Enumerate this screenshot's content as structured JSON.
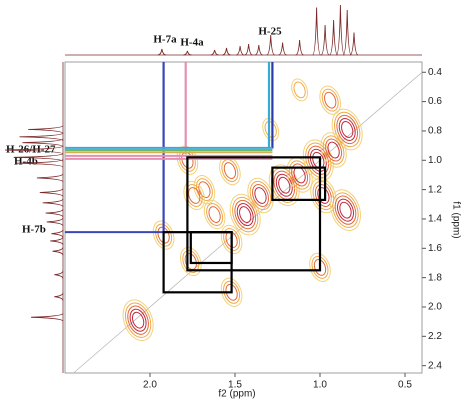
{
  "chart_data": {
    "type": "contour",
    "x_label": "f2 (ppm)",
    "y_label": "f1 (ppm)",
    "xlim": [
      2.5,
      0.4
    ],
    "ylim": [
      0.33,
      2.45
    ],
    "xticks": [
      {
        "value": 2,
        "label": "2.0"
      },
      1.5,
      {
        "value": 1,
        "label": "1.0"
      },
      0.5
    ],
    "yticks": [
      0.4,
      0.6,
      0.8,
      {
        "value": 1,
        "label": "1.0"
      },
      1.2,
      1.4,
      1.6,
      1.8,
      {
        "value": 2,
        "label": "2.0"
      },
      2.2,
      2.4
    ],
    "annotations": [
      "H-7a",
      "H-4a",
      "H-25",
      "H-26/H-27",
      "H-4b",
      "H-7b"
    ],
    "peaks": {
      "x": [
        2.07,
        1.92,
        1.78,
        1.76,
        1.52,
        1.52,
        1.62,
        1.44,
        1.35,
        1.21,
        1.12,
        1.01,
        1.0,
        0.98,
        0.84,
        0.85,
        0.92,
        1.12,
        1.29,
        1.68,
        1.53,
        1.74,
        0.94
      ],
      "y": [
        2.09,
        1.51,
        1.0,
        1.69,
        1.9,
        1.54,
        1.37,
        1.37,
        1.24,
        1.17,
        1.1,
        1.0,
        1.73,
        1.24,
        0.79,
        1.34,
        0.93,
        0.52,
        0.79,
        1.2,
        1.07,
        1.24,
        0.59
      ],
      "intensity": [
        4,
        2,
        2,
        2,
        2,
        2,
        2,
        4,
        3,
        4,
        3,
        4,
        2,
        3,
        4,
        4,
        3,
        1,
        1,
        2,
        2,
        2,
        2
      ]
    },
    "vertical_guides": [
      {
        "x": 1.92,
        "y_end": 1.49,
        "color": "#3a46b8"
      },
      {
        "x": 1.79,
        "y_end": 0.96,
        "color": "#e58fb0"
      },
      {
        "x": 1.3,
        "y_end": 0.92,
        "color": "#3aa8d8"
      },
      {
        "x": 1.28,
        "y_end": 0.92,
        "color": "#2a3aa8"
      }
    ],
    "horizontal_guides": [
      {
        "y": 0.915,
        "x_end": 1.28,
        "color": "#3aa8d8"
      },
      {
        "y": 0.93,
        "x_end": 1.28,
        "color": "#6cb86c"
      },
      {
        "y": 0.945,
        "x_end": 1.28,
        "color": "#d4b050"
      },
      {
        "y": 0.97,
        "x_end": 1.28,
        "color": "#e58fb0"
      },
      {
        "y": 0.99,
        "x_end": 1.28,
        "color": "#e58fb0"
      },
      {
        "y": 1.49,
        "x_end": 1.92,
        "color": "#3a46b8"
      }
    ],
    "boxes": [
      {
        "x1": 1.78,
        "x2": 1.0,
        "y1": 0.98,
        "y2": 1.75
      },
      {
        "x1": 1.28,
        "x2": 0.97,
        "y1": 1.05,
        "y2": 1.27
      },
      {
        "x1": 1.92,
        "x2": 1.52,
        "y1": 1.49,
        "y2": 1.9
      },
      {
        "x1": 1.76,
        "x2": 1.52,
        "y1": 1.49,
        "y2": 1.7
      }
    ],
    "f2_projection": {
      "x": [
        1.93,
        1.78,
        1.62,
        1.55,
        1.47,
        1.42,
        1.36,
        1.29,
        1.22,
        1.12,
        1.02,
        0.97,
        0.92,
        0.88,
        0.84,
        0.8
      ],
      "height": [
        12,
        8,
        10,
        14,
        18,
        22,
        20,
        40,
        25,
        30,
        95,
        60,
        70,
        100,
        90,
        45
      ]
    },
    "f1_projection": {
      "y": [
        0.79,
        0.84,
        0.88,
        0.93,
        0.98,
        1.02,
        1.12,
        1.22,
        1.29,
        1.36,
        1.42,
        1.5,
        1.55,
        1.62,
        1.78,
        1.93,
        2.07
      ],
      "height": [
        60,
        75,
        70,
        100,
        85,
        80,
        45,
        40,
        35,
        30,
        28,
        20,
        22,
        18,
        15,
        15,
        55
      ]
    }
  }
}
